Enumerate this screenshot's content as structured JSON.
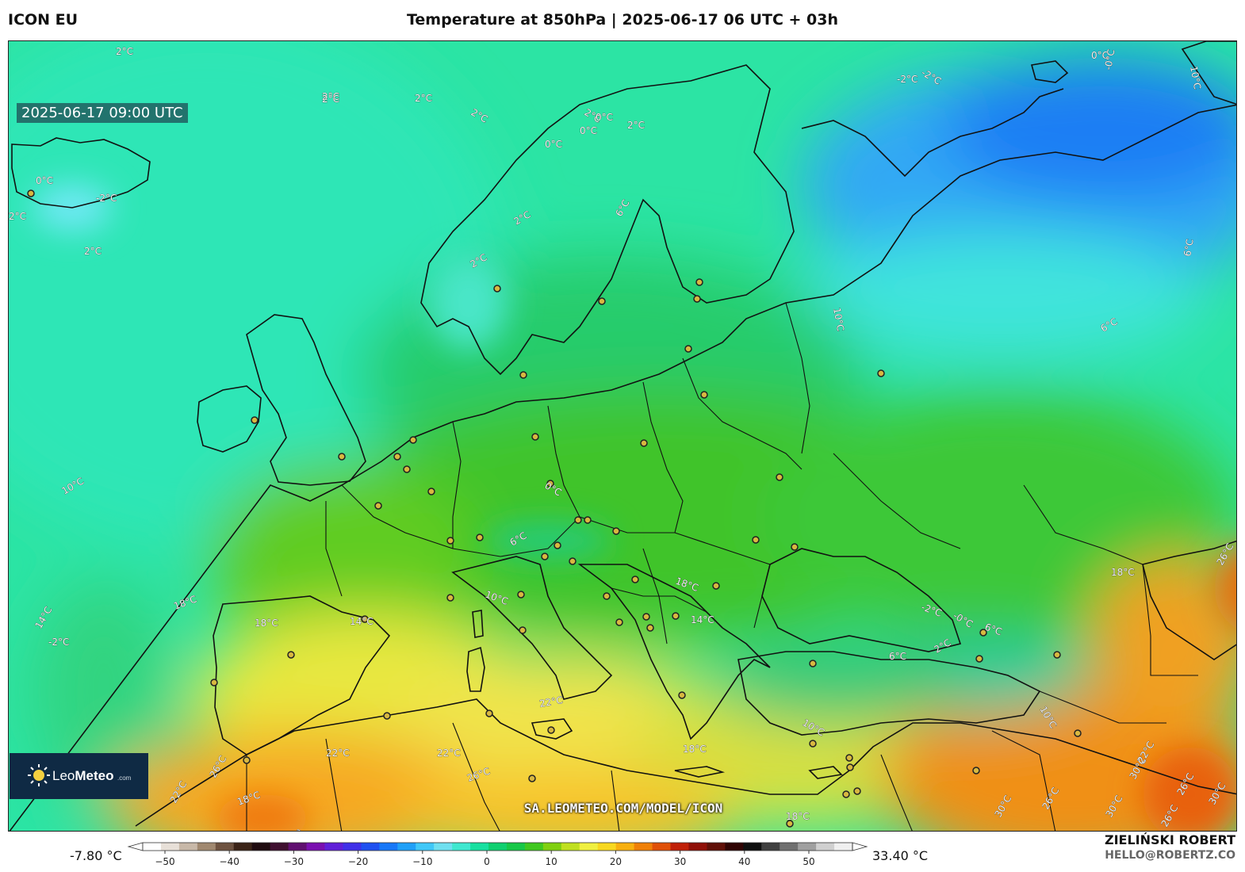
{
  "header": {
    "brand": "ICON EU",
    "title": "Temperature at 850hPa | 2025-06-17 06 UTC + 03h"
  },
  "map": {
    "timestamp": "2025-06-17 09:00 UTC",
    "watermark": "SA.LEOMETEO.COM/MODEL/ICON",
    "contour_labels": [
      "2°C",
      "2°C",
      "2°C",
      "2°C",
      "2°C",
      "0°C",
      "0°C",
      "-2°C",
      "2°C",
      "0°C",
      "-2°C",
      "2°C",
      "0°C",
      "2°C",
      "2°C",
      "2°C",
      "2°C",
      "6°C",
      "10°C",
      "6°C",
      "0°C",
      "6°C",
      "10°C",
      "6°C",
      "10°C",
      "14°C",
      "18°C",
      "18°C",
      "10°C",
      "14°C",
      "14°C",
      "18°C",
      "18°C",
      "22°C",
      "22°C",
      "22°C",
      "26°C",
      "22°C",
      "26°C",
      "18°C",
      "26°C",
      "18°C",
      "18°C",
      "-2°C",
      "-0°C",
      "6°C",
      "2°C",
      "6°C",
      "10°C",
      "10°C",
      "26°C",
      "26°C",
      "30°C",
      "22°C",
      "26°C",
      "30°C",
      "26°C",
      "30°C",
      "30°C",
      "0°C",
      "-2°C",
      "-0°C",
      "-2°C"
    ]
  },
  "logo": {
    "name_light": "Leo",
    "name_bold": "Meteo",
    "domain": ".com"
  },
  "colorbar": {
    "min_label": "-7.80 °C",
    "max_label": "33.40 °C",
    "ticks": [
      "−50",
      "−40",
      "−30",
      "−20",
      "−10",
      "0",
      "10",
      "20",
      "30",
      "40",
      "50"
    ],
    "colors": [
      "#ffffff",
      "#e8e0d8",
      "#c8b8a8",
      "#a08870",
      "#6e5240",
      "#3c2418",
      "#200c10",
      "#401030",
      "#601070",
      "#7a10b0",
      "#6020d8",
      "#4030e8",
      "#2050f0",
      "#1878f8",
      "#20a0f8",
      "#40c8f8",
      "#70e0f0",
      "#40e8d0",
      "#18e0a0",
      "#10d070",
      "#18c848",
      "#40c820",
      "#80d010",
      "#c0e020",
      "#f0f040",
      "#f8d820",
      "#f8b010",
      "#f08008",
      "#e05008",
      "#c02008",
      "#901008",
      "#601008",
      "#300404",
      "#101010",
      "#404040",
      "#707070",
      "#a0a0a0",
      "#d0d0d0",
      "#f0f0f0"
    ]
  },
  "credit": {
    "author": "ZIELIŃSKI ROBERT",
    "email": "HELLO@ROBERTZ.CO"
  }
}
